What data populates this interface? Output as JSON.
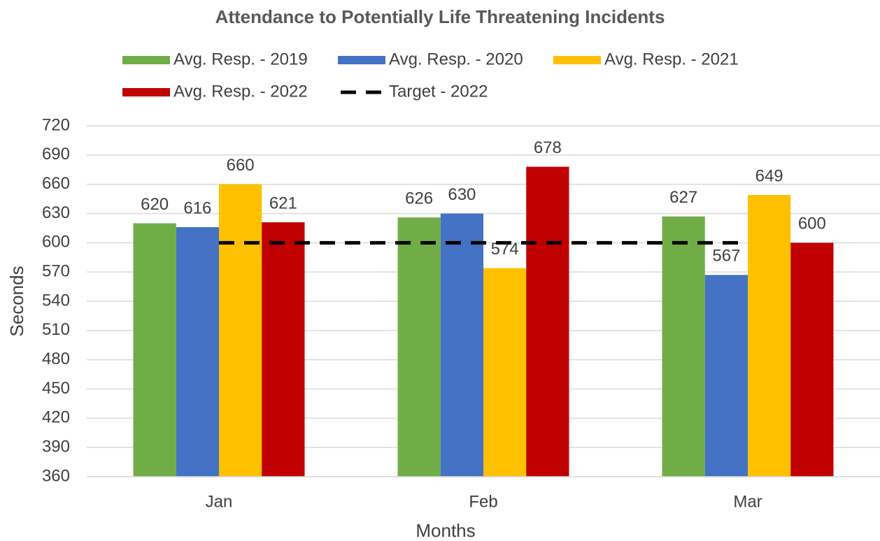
{
  "chart_data": {
    "type": "bar",
    "title": "Attendance to Potentially Life Threatening Incidents",
    "x_label": "Months",
    "y_label": "Seconds",
    "categories": [
      "Jan",
      "Feb",
      "Mar"
    ],
    "series": [
      {
        "name": "Avg. Resp. - 2019",
        "color": "#70ad47",
        "values": [
          620,
          626,
          627
        ]
      },
      {
        "name": "Avg. Resp. - 2020",
        "color": "#4472c4",
        "values": [
          616,
          630,
          567
        ]
      },
      {
        "name": "Avg. Resp. - 2021",
        "color": "#ffc000",
        "values": [
          660,
          574,
          649
        ]
      },
      {
        "name": "Avg. Resp. - 2022",
        "color": "#c00000",
        "values": [
          621,
          678,
          600
        ]
      },
      {
        "name": "Target - 2022",
        "color": "#000000",
        "type": "line",
        "dashed": true,
        "values": [
          600,
          600,
          600
        ]
      }
    ],
    "ylim": [
      360,
      720
    ],
    "yticks": [
      360,
      390,
      420,
      450,
      480,
      510,
      540,
      570,
      600,
      630,
      660,
      690,
      720
    ],
    "grid": true,
    "data_labels": true,
    "legend": "top"
  }
}
